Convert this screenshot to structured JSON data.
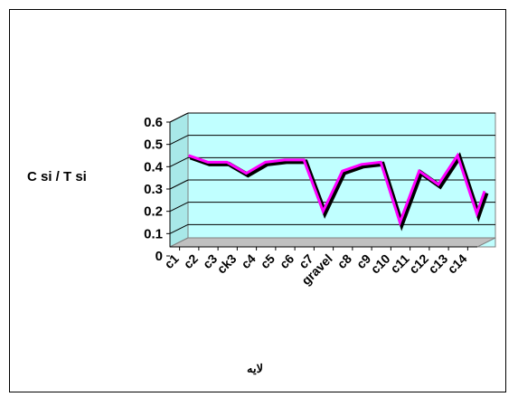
{
  "chart_data": {
    "type": "line",
    "categories": [
      "c1",
      "c2",
      "c3",
      "ck3",
      "c4",
      "c5",
      "c6",
      "c7",
      "gravel",
      "c8",
      "c9",
      "c10",
      "c11",
      "c12",
      "c13",
      "c14"
    ],
    "series": [
      {
        "values": [
          0.43,
          0.4,
          0.4,
          0.35,
          0.4,
          0.41,
          0.41,
          0.18,
          0.36,
          0.39,
          0.4,
          0.13,
          0.36,
          0.3,
          0.43,
          0.17
        ]
      }
    ],
    "yticks": [
      "0",
      "0.1",
      "0.2",
      "0.3",
      "0.4",
      "0.5",
      "0.6"
    ],
    "ylim": [
      0,
      0.6
    ],
    "ylabel": "C si / T si",
    "xlabel": "لايه",
    "grid": true,
    "last_segment_end": 0.27,
    "colors": {
      "wall": "#c0ffff",
      "floor": "#c0c0c0",
      "line": "#ff00ff",
      "shadow": "#000000"
    }
  }
}
